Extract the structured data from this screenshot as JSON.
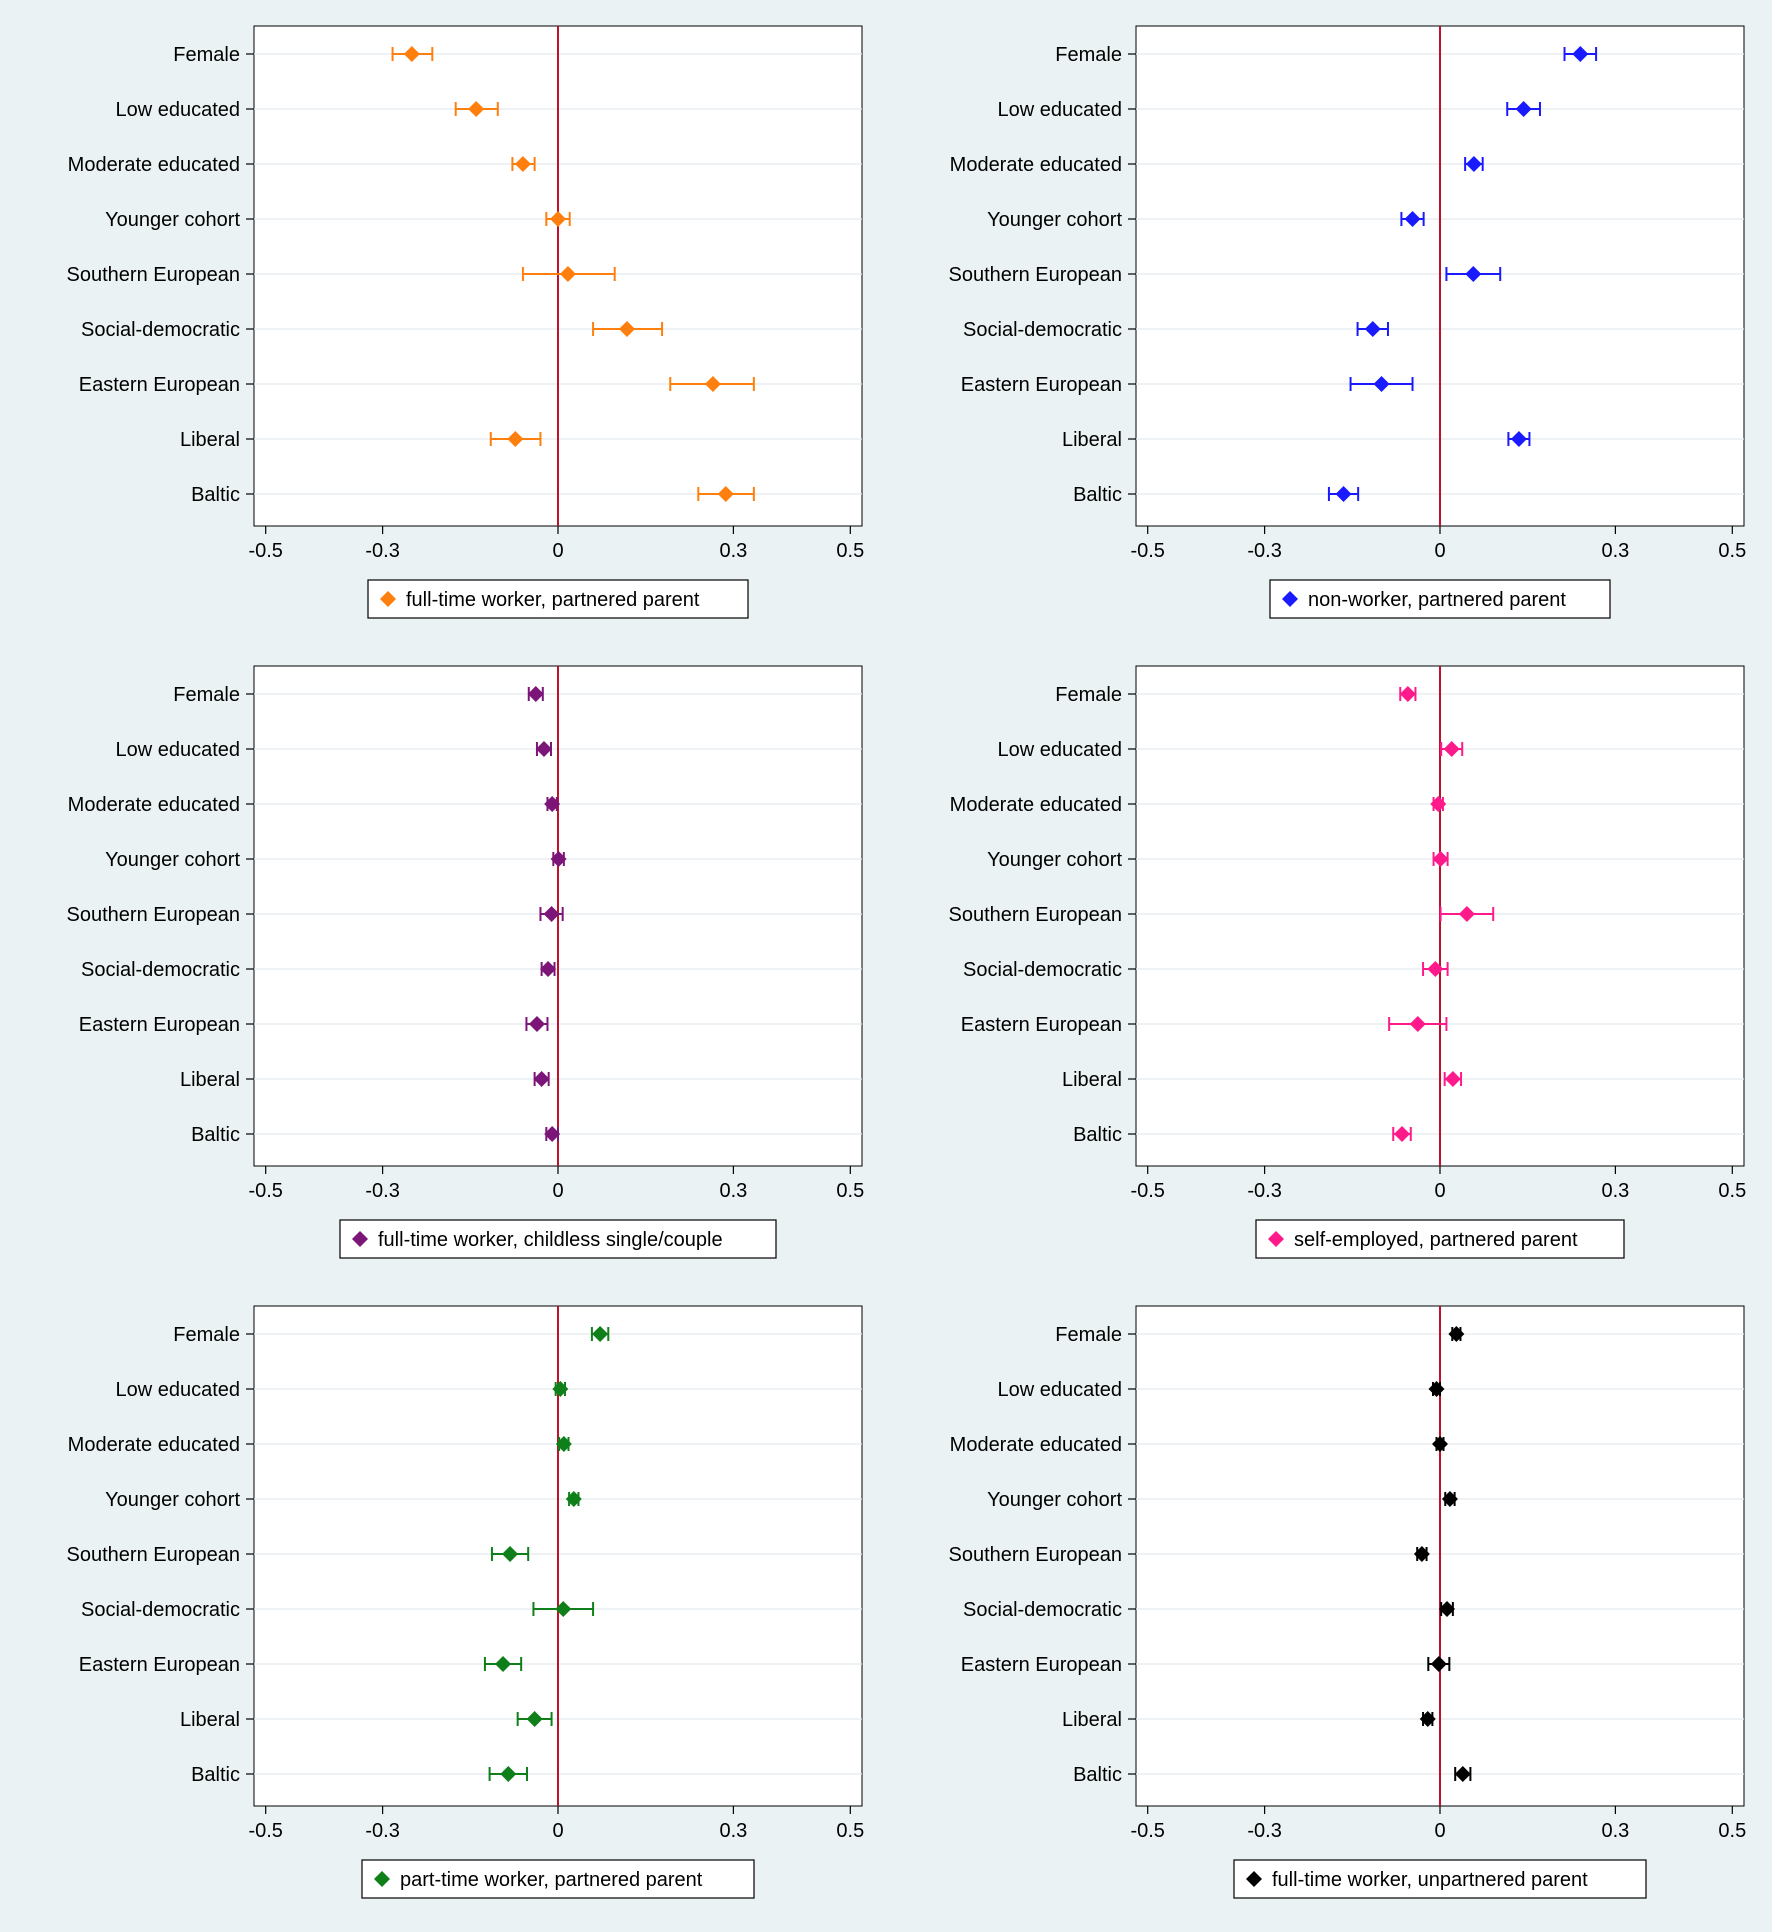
{
  "figure": {
    "background": "#eaf2f3",
    "plot_background": "#ffffff",
    "zero_line_color": "#c0112b"
  },
  "chart_data": [
    {
      "type": "coefficient-plot",
      "legend": "full-time worker, partnered parent",
      "color": "#ff7f0e",
      "categories": [
        "Female",
        "Low educated",
        "Moderate educated",
        "Younger cohort",
        "Southern European",
        "Social-democratic",
        "Eastern European",
        "Liberal",
        "Baltic"
      ],
      "estimates": [
        -0.25,
        -0.14,
        -0.06,
        0.0,
        0.017,
        0.118,
        0.265,
        -0.073,
        0.287
      ],
      "ci_low": [
        -0.283,
        -0.175,
        -0.078,
        -0.02,
        -0.06,
        0.06,
        0.192,
        -0.115,
        0.24
      ],
      "ci_high": [
        -0.215,
        -0.103,
        -0.04,
        0.02,
        0.097,
        0.178,
        0.335,
        -0.03,
        0.335
      ],
      "xlim": [
        -0.52,
        0.52
      ],
      "xticks": [
        -0.5,
        -0.3,
        0,
        0.3,
        0.5
      ],
      "xtick_labels": [
        "-0.5",
        "-0.3",
        "0",
        "0.3",
        "0.5"
      ]
    },
    {
      "type": "coefficient-plot",
      "legend": "non-worker, partnered parent",
      "color": "#1a1aff",
      "categories": [
        "Female",
        "Low educated",
        "Moderate educated",
        "Younger cohort",
        "Southern European",
        "Social-democratic",
        "Eastern European",
        "Liberal",
        "Baltic"
      ],
      "estimates": [
        0.24,
        0.143,
        0.058,
        -0.047,
        0.057,
        -0.115,
        -0.1,
        0.135,
        -0.165
      ],
      "ci_low": [
        0.213,
        0.115,
        0.043,
        -0.066,
        0.011,
        -0.141,
        -0.153,
        0.117,
        -0.19
      ],
      "ci_high": [
        0.267,
        0.171,
        0.073,
        -0.028,
        0.103,
        -0.089,
        -0.047,
        0.153,
        -0.14
      ],
      "xlim": [
        -0.52,
        0.52
      ],
      "xticks": [
        -0.5,
        -0.3,
        0,
        0.3,
        0.5
      ],
      "xtick_labels": [
        "-0.5",
        "-0.3",
        "0",
        "0.3",
        "0.5"
      ]
    },
    {
      "type": "coefficient-plot",
      "legend": "full-time worker, childless single/couple",
      "color": "#7b1578",
      "categories": [
        "Female",
        "Low educated",
        "Moderate educated",
        "Younger cohort",
        "Southern European",
        "Social-democratic",
        "Eastern European",
        "Liberal",
        "Baltic"
      ],
      "estimates": [
        -0.038,
        -0.024,
        -0.01,
        0.001,
        -0.011,
        -0.017,
        -0.036,
        -0.028,
        -0.01
      ],
      "ci_low": [
        -0.05,
        -0.036,
        -0.018,
        -0.008,
        -0.03,
        -0.028,
        -0.054,
        -0.04,
        -0.02
      ],
      "ci_high": [
        -0.026,
        -0.012,
        -0.002,
        0.01,
        0.008,
        -0.006,
        -0.018,
        -0.016,
        0.0
      ],
      "xlim": [
        -0.52,
        0.52
      ],
      "xticks": [
        -0.5,
        -0.3,
        0,
        0.3,
        0.5
      ],
      "xtick_labels": [
        "-0.5",
        "-0.3",
        "0",
        "0.3",
        "0.5"
      ]
    },
    {
      "type": "coefficient-plot",
      "legend": "self-employed, partnered parent",
      "color": "#ff1a8c",
      "categories": [
        "Female",
        "Low educated",
        "Moderate educated",
        "Younger cohort",
        "Southern European",
        "Social-democratic",
        "Eastern European",
        "Liberal",
        "Baltic"
      ],
      "estimates": [
        -0.055,
        0.02,
        -0.003,
        0.001,
        0.046,
        -0.008,
        -0.038,
        0.022,
        -0.065
      ],
      "ci_low": [
        -0.068,
        0.002,
        -0.011,
        -0.011,
        0.001,
        -0.029,
        -0.087,
        0.008,
        -0.08
      ],
      "ci_high": [
        -0.042,
        0.038,
        0.005,
        0.013,
        0.091,
        0.013,
        0.011,
        0.036,
        -0.05
      ],
      "xlim": [
        -0.52,
        0.52
      ],
      "xticks": [
        -0.5,
        -0.3,
        0,
        0.3,
        0.5
      ],
      "xtick_labels": [
        "-0.5",
        "-0.3",
        "0",
        "0.3",
        "0.5"
      ]
    },
    {
      "type": "coefficient-plot",
      "legend": "part-time worker, partnered parent",
      "color": "#0f7f1a",
      "categories": [
        "Female",
        "Low educated",
        "Moderate educated",
        "Younger cohort",
        "Southern European",
        "Social-democratic",
        "Eastern European",
        "Liberal",
        "Baltic"
      ],
      "estimates": [
        0.072,
        0.004,
        0.01,
        0.027,
        -0.082,
        0.009,
        -0.094,
        -0.04,
        -0.085
      ],
      "ci_low": [
        0.058,
        -0.004,
        0.002,
        0.019,
        -0.113,
        -0.042,
        -0.125,
        -0.069,
        -0.117
      ],
      "ci_high": [
        0.086,
        0.012,
        0.018,
        0.035,
        -0.051,
        0.06,
        -0.063,
        -0.011,
        -0.053
      ],
      "xlim": [
        -0.52,
        0.52
      ],
      "xticks": [
        -0.5,
        -0.3,
        0,
        0.3,
        0.5
      ],
      "xtick_labels": [
        "-0.5",
        "-0.3",
        "0",
        "0.3",
        "0.5"
      ]
    },
    {
      "type": "coefficient-plot",
      "legend": "full-time worker, unpartnered parent",
      "color": "#000000",
      "categories": [
        "Female",
        "Low educated",
        "Moderate educated",
        "Younger cohort",
        "Southern European",
        "Social-democratic",
        "Eastern European",
        "Liberal",
        "Baltic"
      ],
      "estimates": [
        0.028,
        -0.006,
        0.0,
        0.017,
        -0.031,
        0.012,
        -0.002,
        -0.021,
        0.039
      ],
      "ci_low": [
        0.021,
        -0.012,
        -0.006,
        0.009,
        -0.039,
        0.002,
        -0.02,
        -0.029,
        0.026
      ],
      "ci_high": [
        0.035,
        0.0,
        0.006,
        0.025,
        -0.023,
        0.022,
        0.016,
        -0.013,
        0.052
      ],
      "xlim": [
        -0.52,
        0.52
      ],
      "xticks": [
        -0.5,
        -0.3,
        0,
        0.3,
        0.5
      ],
      "xtick_labels": [
        "-0.5",
        "-0.3",
        "0",
        "0.3",
        "0.5"
      ]
    }
  ]
}
